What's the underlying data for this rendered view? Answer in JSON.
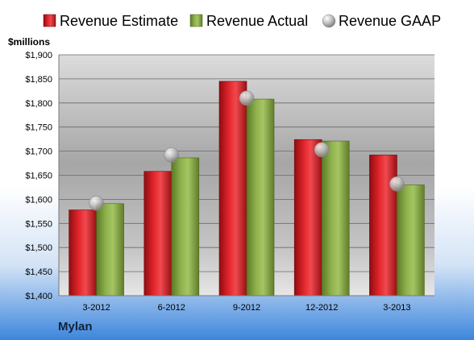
{
  "company": "Mylan",
  "chart_data": {
    "type": "bar",
    "unit_label": "$millions",
    "categories": [
      "3-2012",
      "6-2012",
      "9-2012",
      "12-2012",
      "3-2013"
    ],
    "series": [
      {
        "name": "Revenue Estimate",
        "kind": "bar",
        "color": "#d81f26",
        "values": [
          1578,
          1658,
          1845,
          1724,
          1692
        ]
      },
      {
        "name": "Revenue Actual",
        "kind": "bar",
        "color": "#86a845",
        "values": [
          1591,
          1686,
          1808,
          1721,
          1630
        ]
      },
      {
        "name": "Revenue GAAP",
        "kind": "marker",
        "color": "#b8b8b8",
        "values": [
          1592,
          1692,
          1810,
          1703,
          1632
        ]
      }
    ],
    "ylim": [
      1400,
      1900
    ],
    "yticks": [
      1400,
      1450,
      1500,
      1550,
      1600,
      1650,
      1700,
      1750,
      1800,
      1850,
      1900
    ],
    "ytick_labels": [
      "$1,400",
      "$1,450",
      "$1,500",
      "$1,550",
      "$1,600",
      "$1,650",
      "$1,700",
      "$1,750",
      "$1,800",
      "$1,850",
      "$1,900"
    ],
    "grid": true,
    "legend_position": "top"
  }
}
